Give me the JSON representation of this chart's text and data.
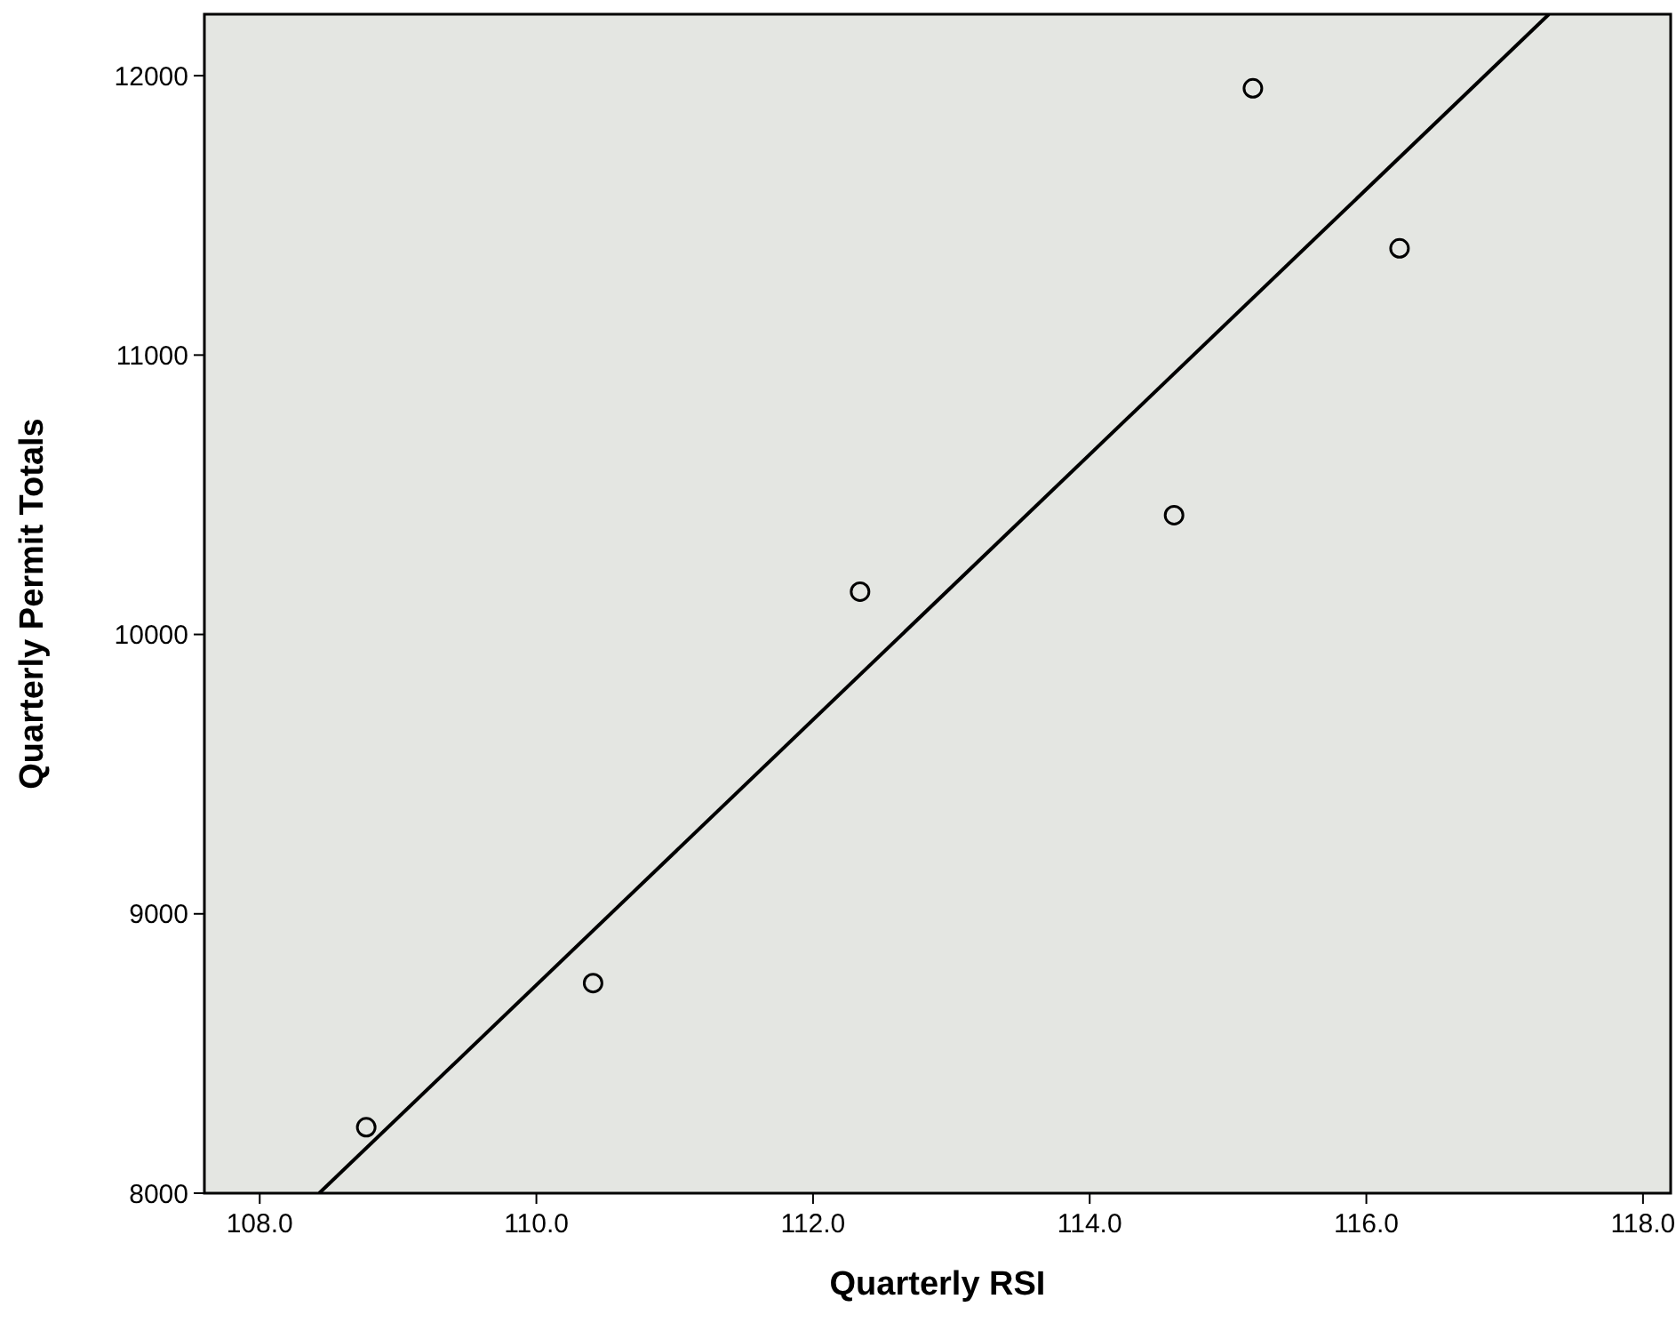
{
  "chart_data": {
    "type": "scatter",
    "xlabel": "Quarterly RSI",
    "ylabel": "Quarterly Permit Totals",
    "xlim": [
      107.6,
      118.2
    ],
    "ylim": [
      8000,
      12220
    ],
    "xticks": [
      {
        "value": 108,
        "label": "108.0"
      },
      {
        "value": 110,
        "label": "110.0"
      },
      {
        "value": 112,
        "label": "112.0"
      },
      {
        "value": 114,
        "label": "114.0"
      },
      {
        "value": 116,
        "label": "116.0"
      },
      {
        "value": 118,
        "label": "118.0"
      }
    ],
    "yticks": [
      8000,
      9000,
      10000,
      11000,
      12000
    ],
    "grid": false,
    "series": [
      {
        "color": "#000000",
        "marker": "circle",
        "x": [
          108.77,
          110.41,
          112.34,
          114.61,
          115.18,
          116.24
        ],
        "values": [
          8236,
          8752,
          10153,
          10427,
          11955,
          11382
        ]
      },
      {
        "type": "line",
        "color": "#000000",
        "marker": "none",
        "line_style": "solid",
        "x": [
          108.43,
          117.32
        ],
        "values": [
          8000,
          12220
        ]
      }
    ]
  }
}
